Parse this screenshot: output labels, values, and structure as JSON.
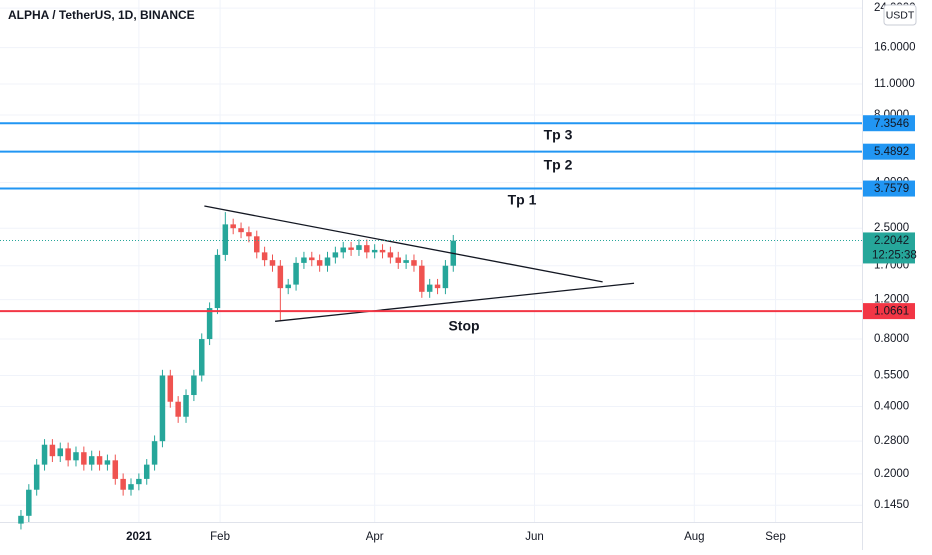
{
  "chart_data": {
    "type": "candlestick",
    "title": "ALPHA / TetherUS, 1D, BINANCE",
    "currency_button": "USDT",
    "log_scale": true,
    "grid": true,
    "up_color": "#26a69a",
    "down_color": "#ef5350",
    "xlim": [
      -53,
      276
    ],
    "ylim": [
      0.122,
      26.1
    ],
    "xticks": [
      {
        "value": 0,
        "label": "2021"
      },
      {
        "value": 31,
        "label": "Feb"
      },
      {
        "value": 90,
        "label": "Apr"
      },
      {
        "value": 151,
        "label": "Jun"
      },
      {
        "value": 212,
        "label": "Aug"
      },
      {
        "value": 243,
        "label": "Sep"
      }
    ],
    "yticks": [
      {
        "value": 0.145,
        "label": "0.1450"
      },
      {
        "value": 0.2,
        "label": "0.2000"
      },
      {
        "value": 0.28,
        "label": "0.2800"
      },
      {
        "value": 0.4,
        "label": "0.4000"
      },
      {
        "value": 0.55,
        "label": "0.5500"
      },
      {
        "value": 0.8,
        "label": "0.8000"
      },
      {
        "value": 1.2,
        "label": "1.2000"
      },
      {
        "value": 1.7,
        "label": "1.7000"
      },
      {
        "value": 2.5,
        "label": "2.5000"
      },
      {
        "value": 4,
        "label": "4.0000"
      },
      {
        "value": 8,
        "label": "8.0000"
      },
      {
        "value": 11,
        "label": "11.0000"
      },
      {
        "value": 16,
        "label": "16.0000"
      },
      {
        "value": 24,
        "label": "24.0000"
      }
    ],
    "x": [
      -45,
      -42,
      -39,
      -36,
      -33,
      -30,
      -27,
      -24,
      -21,
      -18,
      -15,
      -12,
      -9,
      -6,
      -3,
      0,
      3,
      6,
      9,
      12,
      15,
      18,
      21,
      24,
      27,
      30,
      33,
      36,
      39,
      42,
      45,
      48,
      51,
      54,
      57,
      60,
      63,
      66,
      69,
      72,
      75,
      78,
      81,
      84,
      87,
      90,
      93,
      96,
      99,
      102,
      105,
      108,
      111,
      114,
      117,
      120
    ],
    "open": [
      0.12,
      0.13,
      0.17,
      0.22,
      0.27,
      0.24,
      0.26,
      0.23,
      0.25,
      0.22,
      0.24,
      0.22,
      0.23,
      0.19,
      0.17,
      0.18,
      0.19,
      0.22,
      0.28,
      0.55,
      0.42,
      0.36,
      0.45,
      0.55,
      0.8,
      1.1,
      1.9,
      2.6,
      2.5,
      2.4,
      2.3,
      1.95,
      1.8,
      1.7,
      1.35,
      1.4,
      1.75,
      1.85,
      1.8,
      1.7,
      1.85,
      1.95,
      2.05,
      2.0,
      2.1,
      1.95,
      2.0,
      1.95,
      1.85,
      1.75,
      1.8,
      1.7,
      1.3,
      1.4,
      1.35,
      1.7
    ],
    "high": [
      0.138,
      0.18,
      0.233,
      0.286,
      0.286,
      0.276,
      0.276,
      0.265,
      0.265,
      0.254,
      0.254,
      0.244,
      0.244,
      0.201,
      0.191,
      0.201,
      0.233,
      0.297,
      0.583,
      0.583,
      0.445,
      0.477,
      0.583,
      0.848,
      1.166,
      2.014,
      2.95,
      2.756,
      2.65,
      2.544,
      2.438,
      2.067,
      1.908,
      1.802,
      1.484,
      1.855,
      1.961,
      1.961,
      1.908,
      1.961,
      2.067,
      2.173,
      2.173,
      2.226,
      2.226,
      2.12,
      2.12,
      2.067,
      1.961,
      1.908,
      1.908,
      1.802,
      1.484,
      1.484,
      1.802,
      2.332
    ],
    "low": [
      0.113,
      0.122,
      0.16,
      0.207,
      0.226,
      0.226,
      0.216,
      0.216,
      0.207,
      0.207,
      0.207,
      0.207,
      0.179,
      0.16,
      0.16,
      0.169,
      0.179,
      0.207,
      0.263,
      0.395,
      0.338,
      0.338,
      0.423,
      0.517,
      0.752,
      1.034,
      1.786,
      2.35,
      2.256,
      2.162,
      1.833,
      1.692,
      1.598,
      0.96,
      1.269,
      1.316,
      1.645,
      1.692,
      1.598,
      1.598,
      1.739,
      1.833,
      1.88,
      1.88,
      1.833,
      1.833,
      1.833,
      1.739,
      1.645,
      1.645,
      1.598,
      1.222,
      1.222,
      1.269,
      1.269,
      1.598
    ],
    "close": [
      0.13,
      0.17,
      0.22,
      0.27,
      0.24,
      0.26,
      0.23,
      0.25,
      0.22,
      0.24,
      0.22,
      0.23,
      0.19,
      0.17,
      0.18,
      0.19,
      0.22,
      0.28,
      0.55,
      0.42,
      0.36,
      0.45,
      0.55,
      0.8,
      1.1,
      1.9,
      2.6,
      2.5,
      2.4,
      2.3,
      1.95,
      1.8,
      1.7,
      1.35,
      1.4,
      1.75,
      1.85,
      1.8,
      1.7,
      1.85,
      1.95,
      2.05,
      2.0,
      2.1,
      1.95,
      2.0,
      1.95,
      1.85,
      1.75,
      1.8,
      1.7,
      1.3,
      1.4,
      1.35,
      1.7,
      2.2
    ],
    "trendlines": [
      {
        "x": [
          25,
          177
        ],
        "y": [
          3.14,
          1.44
        ]
      },
      {
        "x": [
          52,
          189
        ],
        "y": [
          0.96,
          1.42
        ]
      }
    ],
    "levels": [
      {
        "value": 7.3546,
        "color": "#2196f3"
      },
      {
        "value": 5.4892,
        "color": "#2196f3"
      },
      {
        "value": 3.7579,
        "color": "#2196f3"
      },
      {
        "value": 1.0661,
        "color": "#f23645"
      }
    ],
    "last_price": 2.2042,
    "countdown": "12:25:38",
    "annotations": [
      "Tp 3",
      "Tp 2",
      "Tp 1",
      "Stop"
    ]
  }
}
